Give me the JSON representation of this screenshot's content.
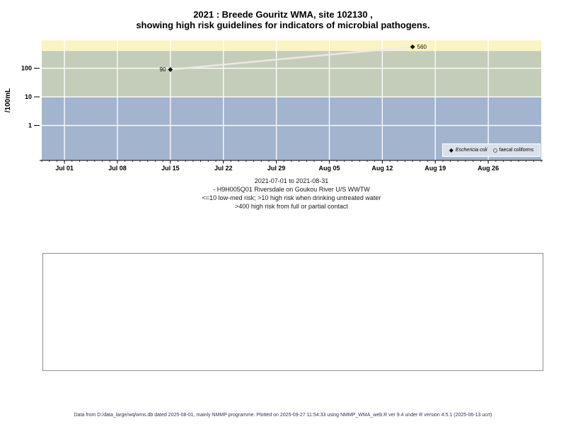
{
  "title": {
    "line1": "2021 : Breede Gouritz WMA, site 102130 ,",
    "line2": "showing high risk guidelines for indicators of microbial pathogens."
  },
  "chart_data": {
    "type": "line",
    "title": "2021 : Breede Gouritz WMA, site 102130 , showing high risk guidelines for indicators of microbial pathogens.",
    "ylabel": "/100mL",
    "y_axis": {
      "scale": "log",
      "range": [
        0.06,
        950
      ],
      "ticks": [
        1,
        10,
        100
      ]
    },
    "x_axis": {
      "range": [
        "2021-06-28",
        "2021-09-02"
      ],
      "minor_tick_interval_days": 1,
      "major_ticks": [
        {
          "date": "2021-07-01",
          "label": "Jul 01"
        },
        {
          "date": "2021-07-08",
          "label": "Jul 08"
        },
        {
          "date": "2021-07-15",
          "label": "Jul 15"
        },
        {
          "date": "2021-07-22",
          "label": "Jul 22"
        },
        {
          "date": "2021-07-29",
          "label": "Jul 29"
        },
        {
          "date": "2021-08-05",
          "label": "Aug 05"
        },
        {
          "date": "2021-08-12",
          "label": "Aug 12"
        },
        {
          "date": "2021-08-19",
          "label": "Aug 19"
        },
        {
          "date": "2021-08-26",
          "label": "Aug 26"
        }
      ]
    },
    "grid": "white-major",
    "bands": [
      {
        "name": "high-risk-full-or-partial-contact",
        "from": 400,
        "to": 950,
        "color": "#faf3c3"
      },
      {
        "name": "high-risk-drinking-untreated",
        "from": 10,
        "to": 400,
        "color": "#c4cdb9"
      },
      {
        "name": "low-med-risk",
        "from": 0.06,
        "to": 10,
        "color": "#a3b5ce"
      }
    ],
    "series": [
      {
        "name": "Eschericia coli",
        "marker": "filled-diamond",
        "color": "#111111",
        "line_color": "#ececec",
        "points": [
          {
            "date": "2021-07-15",
            "value": 90,
            "label": "90",
            "label_side": "left"
          },
          {
            "date": "2021-08-16",
            "value": 560,
            "label": "560",
            "label_side": "right"
          }
        ]
      },
      {
        "name": "faecal coliforms",
        "marker": "open-circle",
        "color": "#666666",
        "line_color": "#ececec",
        "points": []
      }
    ],
    "legend_position": "bottom-right-inside"
  },
  "caption": {
    "line1": "2021-07-01 to 2021-08-31",
    "line2": "- H9H005Q01 Riversdale on Goukou River U/S WWTW",
    "line3": "<=10 low-med risk; >10 high risk when drinking untreated water",
    "line4": ">400 high risk from full or partial contact"
  },
  "footer": "Data from D:/data_large/wq/wms.db dated 2025-08-01, mainly NMMP programme. Plotted on 2025-09-27 11:54:33 using NMMP_WMA_web.R ver 9.4 under R version 4.5.1 (2025-06-13 ucrt)"
}
